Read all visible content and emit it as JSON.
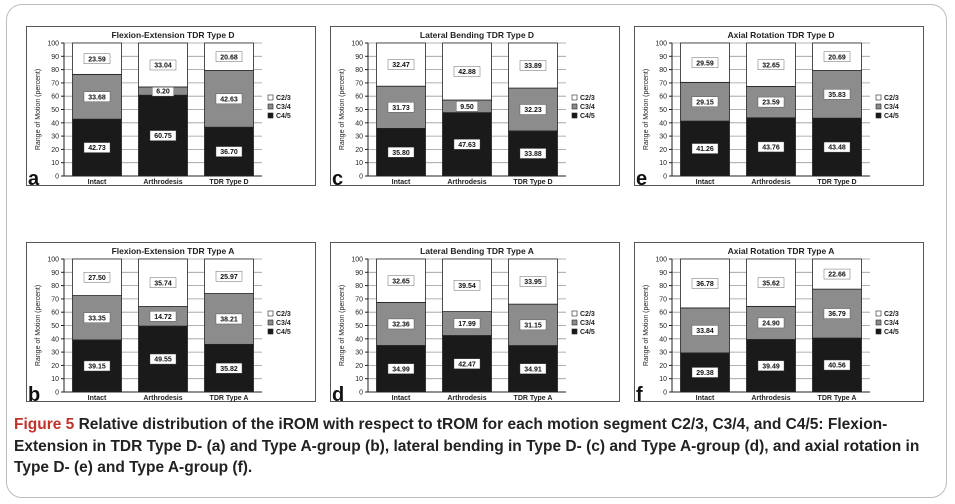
{
  "caption": {
    "figure_label": "Figure 5",
    "text": "Relative distribution of the iROM with respect to tROM for each motion segment C2/3, C3/4, and C4/5: Flexion-Extension in TDR Type D- (a) and Type A-group (b), lateral bending in Type D- (c) and Type A-group (d), and axial rotation in Type D- (e) and Type A-group (f)."
  },
  "colors": {
    "C2/3": "#ffffff",
    "C3/4": "#8c8c8c",
    "C4/5": "#1a1a1a"
  },
  "chart_data": [
    {
      "panel": "a",
      "type": "bar",
      "stacked": true,
      "title": "Flexion-Extension TDR Type D",
      "ylabel": "Range of Motion (percent)",
      "ylim": [
        0,
        100
      ],
      "yticks": [
        0,
        10,
        20,
        30,
        40,
        50,
        60,
        70,
        80,
        90,
        100
      ],
      "categories": [
        "Intact",
        "Arthrodesis",
        "TDR Type D"
      ],
      "series": [
        {
          "name": "C4/5",
          "values": [
            42.73,
            60.75,
            36.7
          ]
        },
        {
          "name": "C3/4",
          "values": [
            33.68,
            6.2,
            42.63
          ]
        },
        {
          "name": "C2/3",
          "values": [
            23.59,
            33.04,
            20.68
          ]
        }
      ],
      "legend": [
        "C2/3",
        "C3/4",
        "C4/5"
      ],
      "legend_position": "right",
      "grid": true
    },
    {
      "panel": "b",
      "type": "bar",
      "stacked": true,
      "title": "Flexion-Extension TDR Type A",
      "ylabel": "Range of Motion (percent)",
      "ylim": [
        0,
        100
      ],
      "yticks": [
        0,
        10,
        20,
        30,
        40,
        50,
        60,
        70,
        80,
        90,
        100
      ],
      "categories": [
        "Intact",
        "Arthrodesis",
        "TDR Type A"
      ],
      "series": [
        {
          "name": "C4/5",
          "values": [
            39.15,
            49.55,
            35.82
          ]
        },
        {
          "name": "C3/4",
          "values": [
            33.35,
            14.72,
            38.21
          ]
        },
        {
          "name": "C2/3",
          "values": [
            27.5,
            35.74,
            25.97
          ]
        }
      ],
      "legend": [
        "C2/3",
        "C3/4",
        "C4/5"
      ],
      "legend_position": "right",
      "grid": true
    },
    {
      "panel": "c",
      "type": "bar",
      "stacked": true,
      "title": "Lateral Bending TDR Type D",
      "ylabel": "Range of Motion (percent)",
      "ylim": [
        0,
        100
      ],
      "yticks": [
        0,
        10,
        20,
        30,
        40,
        50,
        60,
        70,
        80,
        90,
        100
      ],
      "categories": [
        "Intact",
        "Arthrodesis",
        "TDR Type D"
      ],
      "series": [
        {
          "name": "C4/5",
          "values": [
            35.8,
            47.63,
            33.88
          ]
        },
        {
          "name": "C3/4",
          "values": [
            31.73,
            9.5,
            32.23
          ]
        },
        {
          "name": "C2/3",
          "values": [
            32.47,
            42.88,
            33.89
          ]
        }
      ],
      "legend": [
        "C2/3",
        "C3/4",
        "C4/5"
      ],
      "legend_position": "right",
      "grid": true
    },
    {
      "panel": "d",
      "type": "bar",
      "stacked": true,
      "title": "Lateral Bending TDR Type A",
      "ylabel": "Range of Motion (percent)",
      "ylim": [
        0,
        100
      ],
      "yticks": [
        0,
        10,
        20,
        30,
        40,
        50,
        60,
        70,
        80,
        90,
        100
      ],
      "categories": [
        "Intact",
        "Arthrodesis",
        "TDR Type A"
      ],
      "series": [
        {
          "name": "C4/5",
          "values": [
            34.99,
            42.47,
            34.91
          ]
        },
        {
          "name": "C3/4",
          "values": [
            32.36,
            17.99,
            31.15
          ]
        },
        {
          "name": "C2/3",
          "values": [
            32.65,
            39.54,
            33.95
          ]
        }
      ],
      "legend": [
        "C2/3",
        "C3/4",
        "C4/5"
      ],
      "legend_position": "right",
      "grid": true
    },
    {
      "panel": "e",
      "type": "bar",
      "stacked": true,
      "title": "Axial Rotation TDR Type D",
      "ylabel": "Range of Motion (percent)",
      "ylim": [
        0,
        100
      ],
      "yticks": [
        0,
        10,
        20,
        30,
        40,
        50,
        60,
        70,
        80,
        90,
        100
      ],
      "categories": [
        "Intact",
        "Arthrodesis",
        "TDR Type D"
      ],
      "series": [
        {
          "name": "C4/5",
          "values": [
            41.26,
            43.76,
            43.48
          ]
        },
        {
          "name": "C3/4",
          "values": [
            29.15,
            23.59,
            35.83
          ]
        },
        {
          "name": "C2/3",
          "values": [
            29.59,
            32.65,
            20.69
          ]
        }
      ],
      "legend": [
        "C2/3",
        "C3/4",
        "C4/5"
      ],
      "legend_position": "right",
      "grid": true
    },
    {
      "panel": "f",
      "type": "bar",
      "stacked": true,
      "title": "Axial Rotation TDR Type A",
      "ylabel": "Range of Motion (percent)",
      "ylim": [
        0,
        100
      ],
      "yticks": [
        0,
        10,
        20,
        30,
        40,
        50,
        60,
        70,
        80,
        90,
        100
      ],
      "categories": [
        "Intact",
        "Arthrodesis",
        "TDR Type A"
      ],
      "series": [
        {
          "name": "C4/5",
          "values": [
            29.38,
            39.49,
            40.56
          ]
        },
        {
          "name": "C3/4",
          "values": [
            33.84,
            24.9,
            36.79
          ]
        },
        {
          "name": "C2/3",
          "values": [
            36.78,
            35.62,
            22.66
          ]
        }
      ],
      "legend": [
        "C2/3",
        "C3/4",
        "C4/5"
      ],
      "legend_position": "right",
      "grid": true
    }
  ]
}
